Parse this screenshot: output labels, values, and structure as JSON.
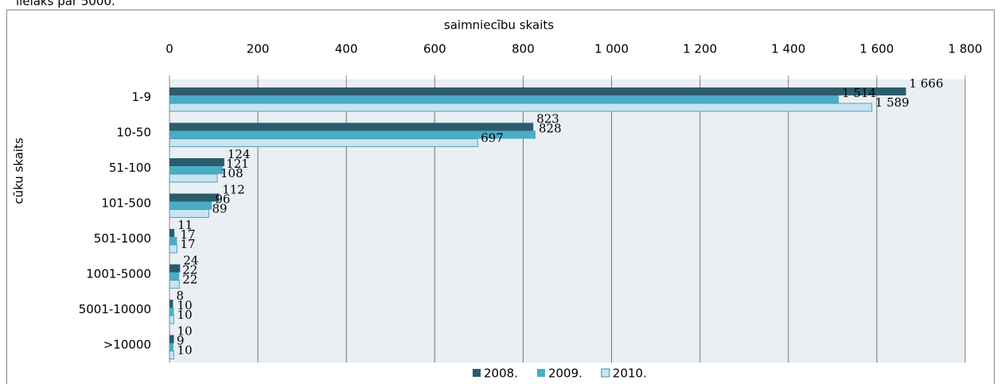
{
  "caption": "lielāks par 5000.",
  "chart_data": {
    "type": "hbar",
    "x_label": "saimniecību skaits",
    "y_label": "cūku skaits",
    "categories": [
      "1-9",
      "10-50",
      "51-100",
      "101-500",
      "501-1000",
      "1001-5000",
      "5001-10000",
      ">10000"
    ],
    "series": [
      {
        "name": "2008.",
        "color": "#2b5c6c",
        "values": [
          1666,
          823,
          124,
          112,
          11,
          24,
          8,
          10
        ],
        "value_labels": [
          "1 666",
          "823",
          "124",
          "112",
          "11",
          "24",
          "8",
          "10"
        ]
      },
      {
        "name": "2009.",
        "color": "#4aacc5",
        "values": [
          1514,
          828,
          121,
          96,
          17,
          22,
          10,
          9
        ],
        "value_labels": [
          "1 514",
          "828",
          "121",
          "96",
          "17",
          "22",
          "10",
          "9"
        ]
      },
      {
        "name": "2010.",
        "color": "#c6e5f0",
        "values": [
          1589,
          697,
          108,
          89,
          17,
          22,
          10,
          10
        ],
        "value_labels": [
          "1 589",
          "697",
          "108",
          "89",
          "17",
          "22",
          "10",
          "10"
        ]
      }
    ],
    "xlim": [
      0,
      1800
    ],
    "xticks": [
      0,
      200,
      400,
      600,
      800,
      {
        "value": 1000,
        "label": "1 000"
      },
      {
        "value": 1200,
        "label": "1 200"
      },
      {
        "value": 1400,
        "label": "1 400"
      },
      {
        "value": 1600,
        "label": "1 600"
      },
      {
        "value": 1800,
        "label": "1 800"
      }
    ],
    "grid": true,
    "legend": "bottom"
  }
}
